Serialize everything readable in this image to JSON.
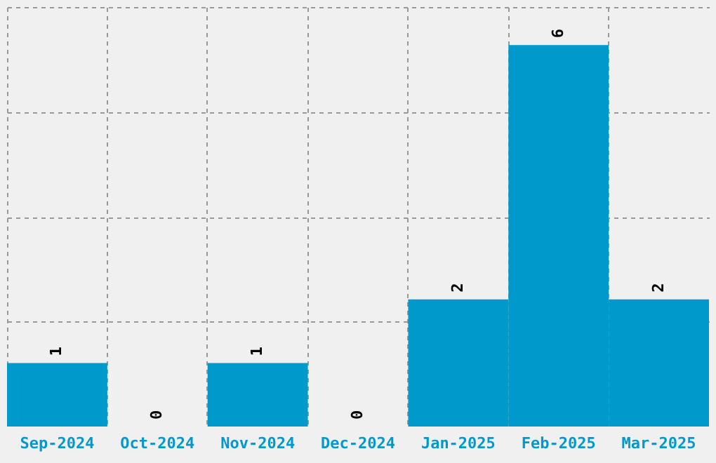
{
  "chart_data": {
    "type": "bar",
    "categories": [
      "Sep-2024",
      "Oct-2024",
      "Nov-2024",
      "Dec-2024",
      "Jan-2025",
      "Feb-2025",
      "Mar-2025"
    ],
    "values": [
      1,
      0,
      1,
      0,
      2,
      6,
      2
    ],
    "color": "#0099cc",
    "ylim": [
      0,
      6.6
    ],
    "yticks": [
      {
        "value": 1.65,
        "label": null
      },
      {
        "value": 3.3,
        "label": null
      },
      {
        "value": 4.95,
        "label": null
      },
      {
        "value": 6.6,
        "label": null
      }
    ],
    "grid": true,
    "tick_labels": "x",
    "data_labels": true
  }
}
